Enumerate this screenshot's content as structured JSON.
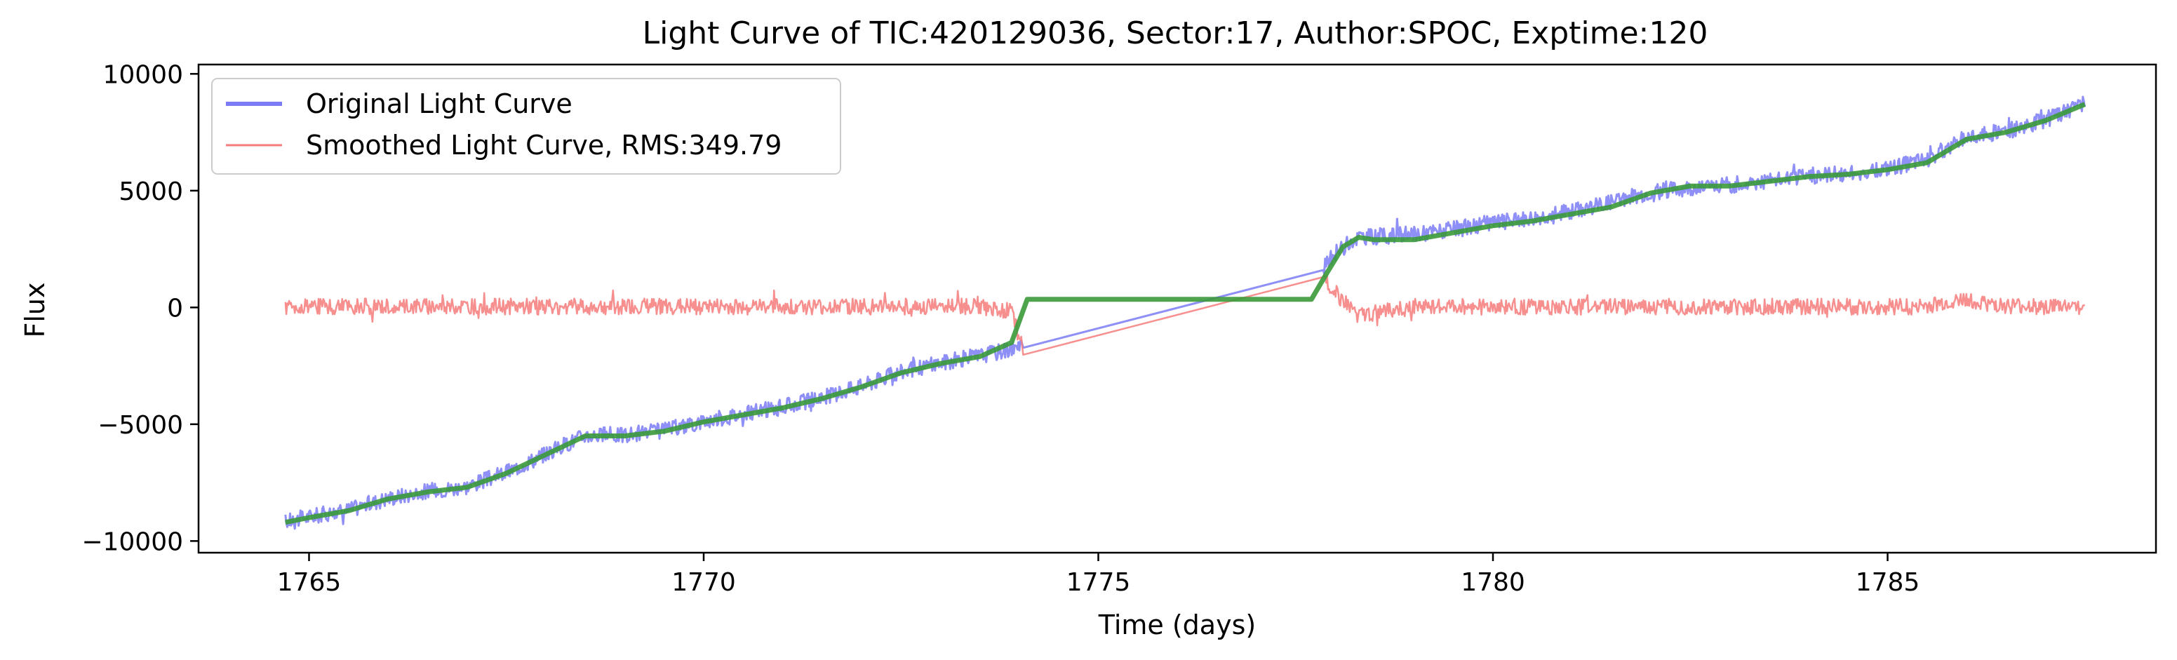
{
  "chart_data": {
    "type": "line",
    "title": "Light Curve of TIC:420129036, Sector:17, Author:SPOC, Exptime:120",
    "xlabel": "Time (days)",
    "ylabel": "Flux",
    "xlim": [
      1763.6,
      1788.4
    ],
    "ylim": [
      -10500,
      10400
    ],
    "xticks": [
      1765,
      1770,
      1775,
      1780,
      1785
    ],
    "xtick_labels": [
      "1765",
      "1770",
      "1775",
      "1780",
      "1785"
    ],
    "yticks": [
      10000,
      5000,
      0,
      -5000,
      -10000
    ],
    "ytick_labels": [
      "10000",
      "5000",
      "0",
      "−5000",
      "−10000"
    ],
    "grid": false,
    "legend_position": "upper-left",
    "legend": [
      "Original Light Curve",
      "Smoothed Light Curve, RMS:349.79"
    ],
    "series": [
      {
        "name": "Original Light Curve",
        "color": "#7b7bf7",
        "noise_amplitude": 350,
        "x": [
          1764.7,
          1765.0,
          1765.5,
          1766.0,
          1766.5,
          1767.0,
          1767.5,
          1768.0,
          1768.5,
          1769.0,
          1769.5,
          1770.0,
          1770.5,
          1771.0,
          1771.5,
          1772.0,
          1772.5,
          1773.0,
          1773.5,
          1773.9,
          1774.05,
          1777.85,
          1778.0,
          1778.3,
          1778.5,
          1779.0,
          1779.5,
          1780.0,
          1780.5,
          1781.0,
          1781.5,
          1782.0,
          1782.5,
          1783.0,
          1783.5,
          1784.0,
          1784.5,
          1785.0,
          1785.5,
          1786.0,
          1786.5,
          1787.0,
          1787.5
        ],
        "y": [
          -9200,
          -9000,
          -8700,
          -8200,
          -7900,
          -7700,
          -7100,
          -6300,
          -5500,
          -5500,
          -5300,
          -4900,
          -4600,
          -4300,
          -3900,
          -3400,
          -2800,
          -2400,
          -2100,
          -1800,
          -1700,
          1600,
          2300,
          3000,
          3000,
          3100,
          3300,
          3600,
          3800,
          4100,
          4500,
          4900,
          5100,
          5200,
          5400,
          5600,
          5700,
          5900,
          6300,
          7300,
          7500,
          8000,
          8700
        ]
      },
      {
        "name": "Smoothed Light Curve, RMS:349.79",
        "color": "#f77b7b",
        "noise_amplitude": 350,
        "x": [
          1764.7,
          1765.0,
          1766.0,
          1767.0,
          1768.0,
          1769.0,
          1770.0,
          1771.0,
          1772.0,
          1773.0,
          1773.5,
          1773.9,
          1774.05,
          1777.85,
          1778.0,
          1778.3,
          1779.0,
          1780.0,
          1781.0,
          1782.0,
          1783.0,
          1784.0,
          1785.0,
          1785.5,
          1786.0,
          1786.5,
          1787.0,
          1787.5
        ],
        "y": [
          0,
          0,
          0,
          0,
          0,
          0,
          0,
          0,
          0,
          0,
          0,
          -200,
          -1900,
          1300,
          600,
          -400,
          0,
          0,
          0,
          0,
          0,
          0,
          0,
          0,
          300,
          0,
          0,
          0
        ]
      },
      {
        "color": "#3a9a3a",
        "x": [
          1764.7,
          1765.0,
          1765.5,
          1766.0,
          1766.5,
          1767.0,
          1767.5,
          1768.0,
          1768.5,
          1769.0,
          1769.5,
          1770.0,
          1770.5,
          1771.0,
          1771.5,
          1772.0,
          1772.5,
          1773.0,
          1773.5,
          1773.7,
          1773.9,
          1774.1,
          1777.7,
          1777.9,
          1778.1,
          1778.3,
          1778.5,
          1779.0,
          1779.5,
          1780.0,
          1780.5,
          1781.0,
          1781.5,
          1782.0,
          1782.5,
          1783.0,
          1783.5,
          1784.0,
          1784.5,
          1785.0,
          1785.5,
          1786.0,
          1786.5,
          1787.0,
          1787.5
        ],
        "y": [
          -9200,
          -9000,
          -8700,
          -8200,
          -7900,
          -7700,
          -7100,
          -6300,
          -5500,
          -5500,
          -5300,
          -4900,
          -4600,
          -4300,
          -3900,
          -3400,
          -2800,
          -2400,
          -2100,
          -1800,
          -1500,
          350,
          350,
          1500,
          2600,
          3000,
          2900,
          2900,
          3200,
          3500,
          3700,
          4000,
          4300,
          4900,
          5200,
          5200,
          5400,
          5600,
          5700,
          5900,
          6200,
          7200,
          7500,
          8000,
          8700
        ]
      }
    ]
  }
}
